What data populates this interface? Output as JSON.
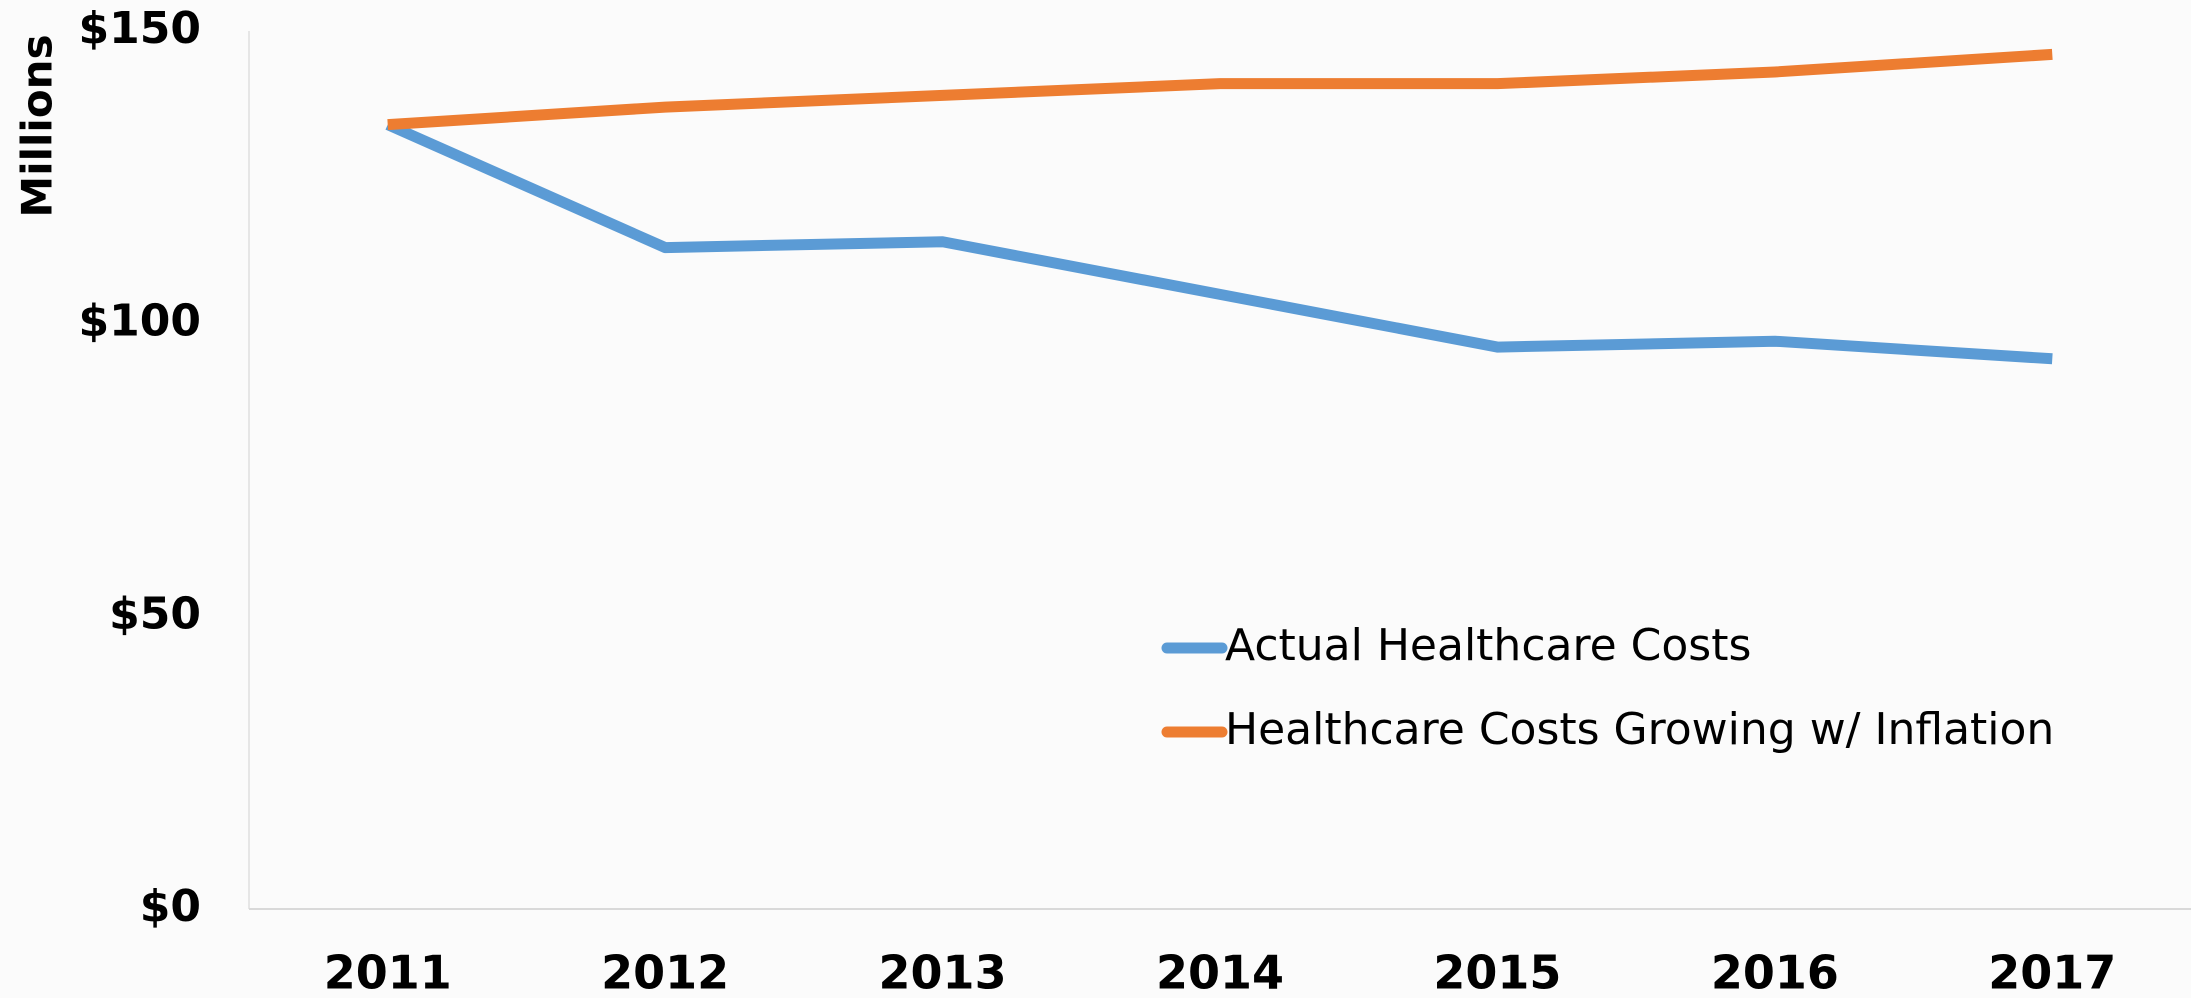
{
  "chart_data": {
    "type": "line",
    "y_label": "Millions",
    "categories": [
      "2011",
      "2012",
      "2013",
      "2014",
      "2015",
      "2016",
      "2017"
    ],
    "series": [
      {
        "name": "Actual Healthcare Costs",
        "color": "#5b9bd5",
        "values": [
          134,
          113,
          114,
          105,
          96,
          97,
          94
        ]
      },
      {
        "name": "Healthcare Costs Growing w/ Inflation",
        "color": "#ed7d31",
        "values": [
          134,
          137,
          139,
          141,
          141,
          143,
          146
        ]
      }
    ],
    "ylim": [
      0,
      150
    ],
    "yticks": [
      {
        "value": 0,
        "label": "$0"
      },
      {
        "value": 50,
        "label": "$50"
      },
      {
        "value": 100,
        "label": "$100"
      },
      {
        "value": 150,
        "label": "$150"
      }
    ],
    "grid": false,
    "legend": "inside-right"
  }
}
